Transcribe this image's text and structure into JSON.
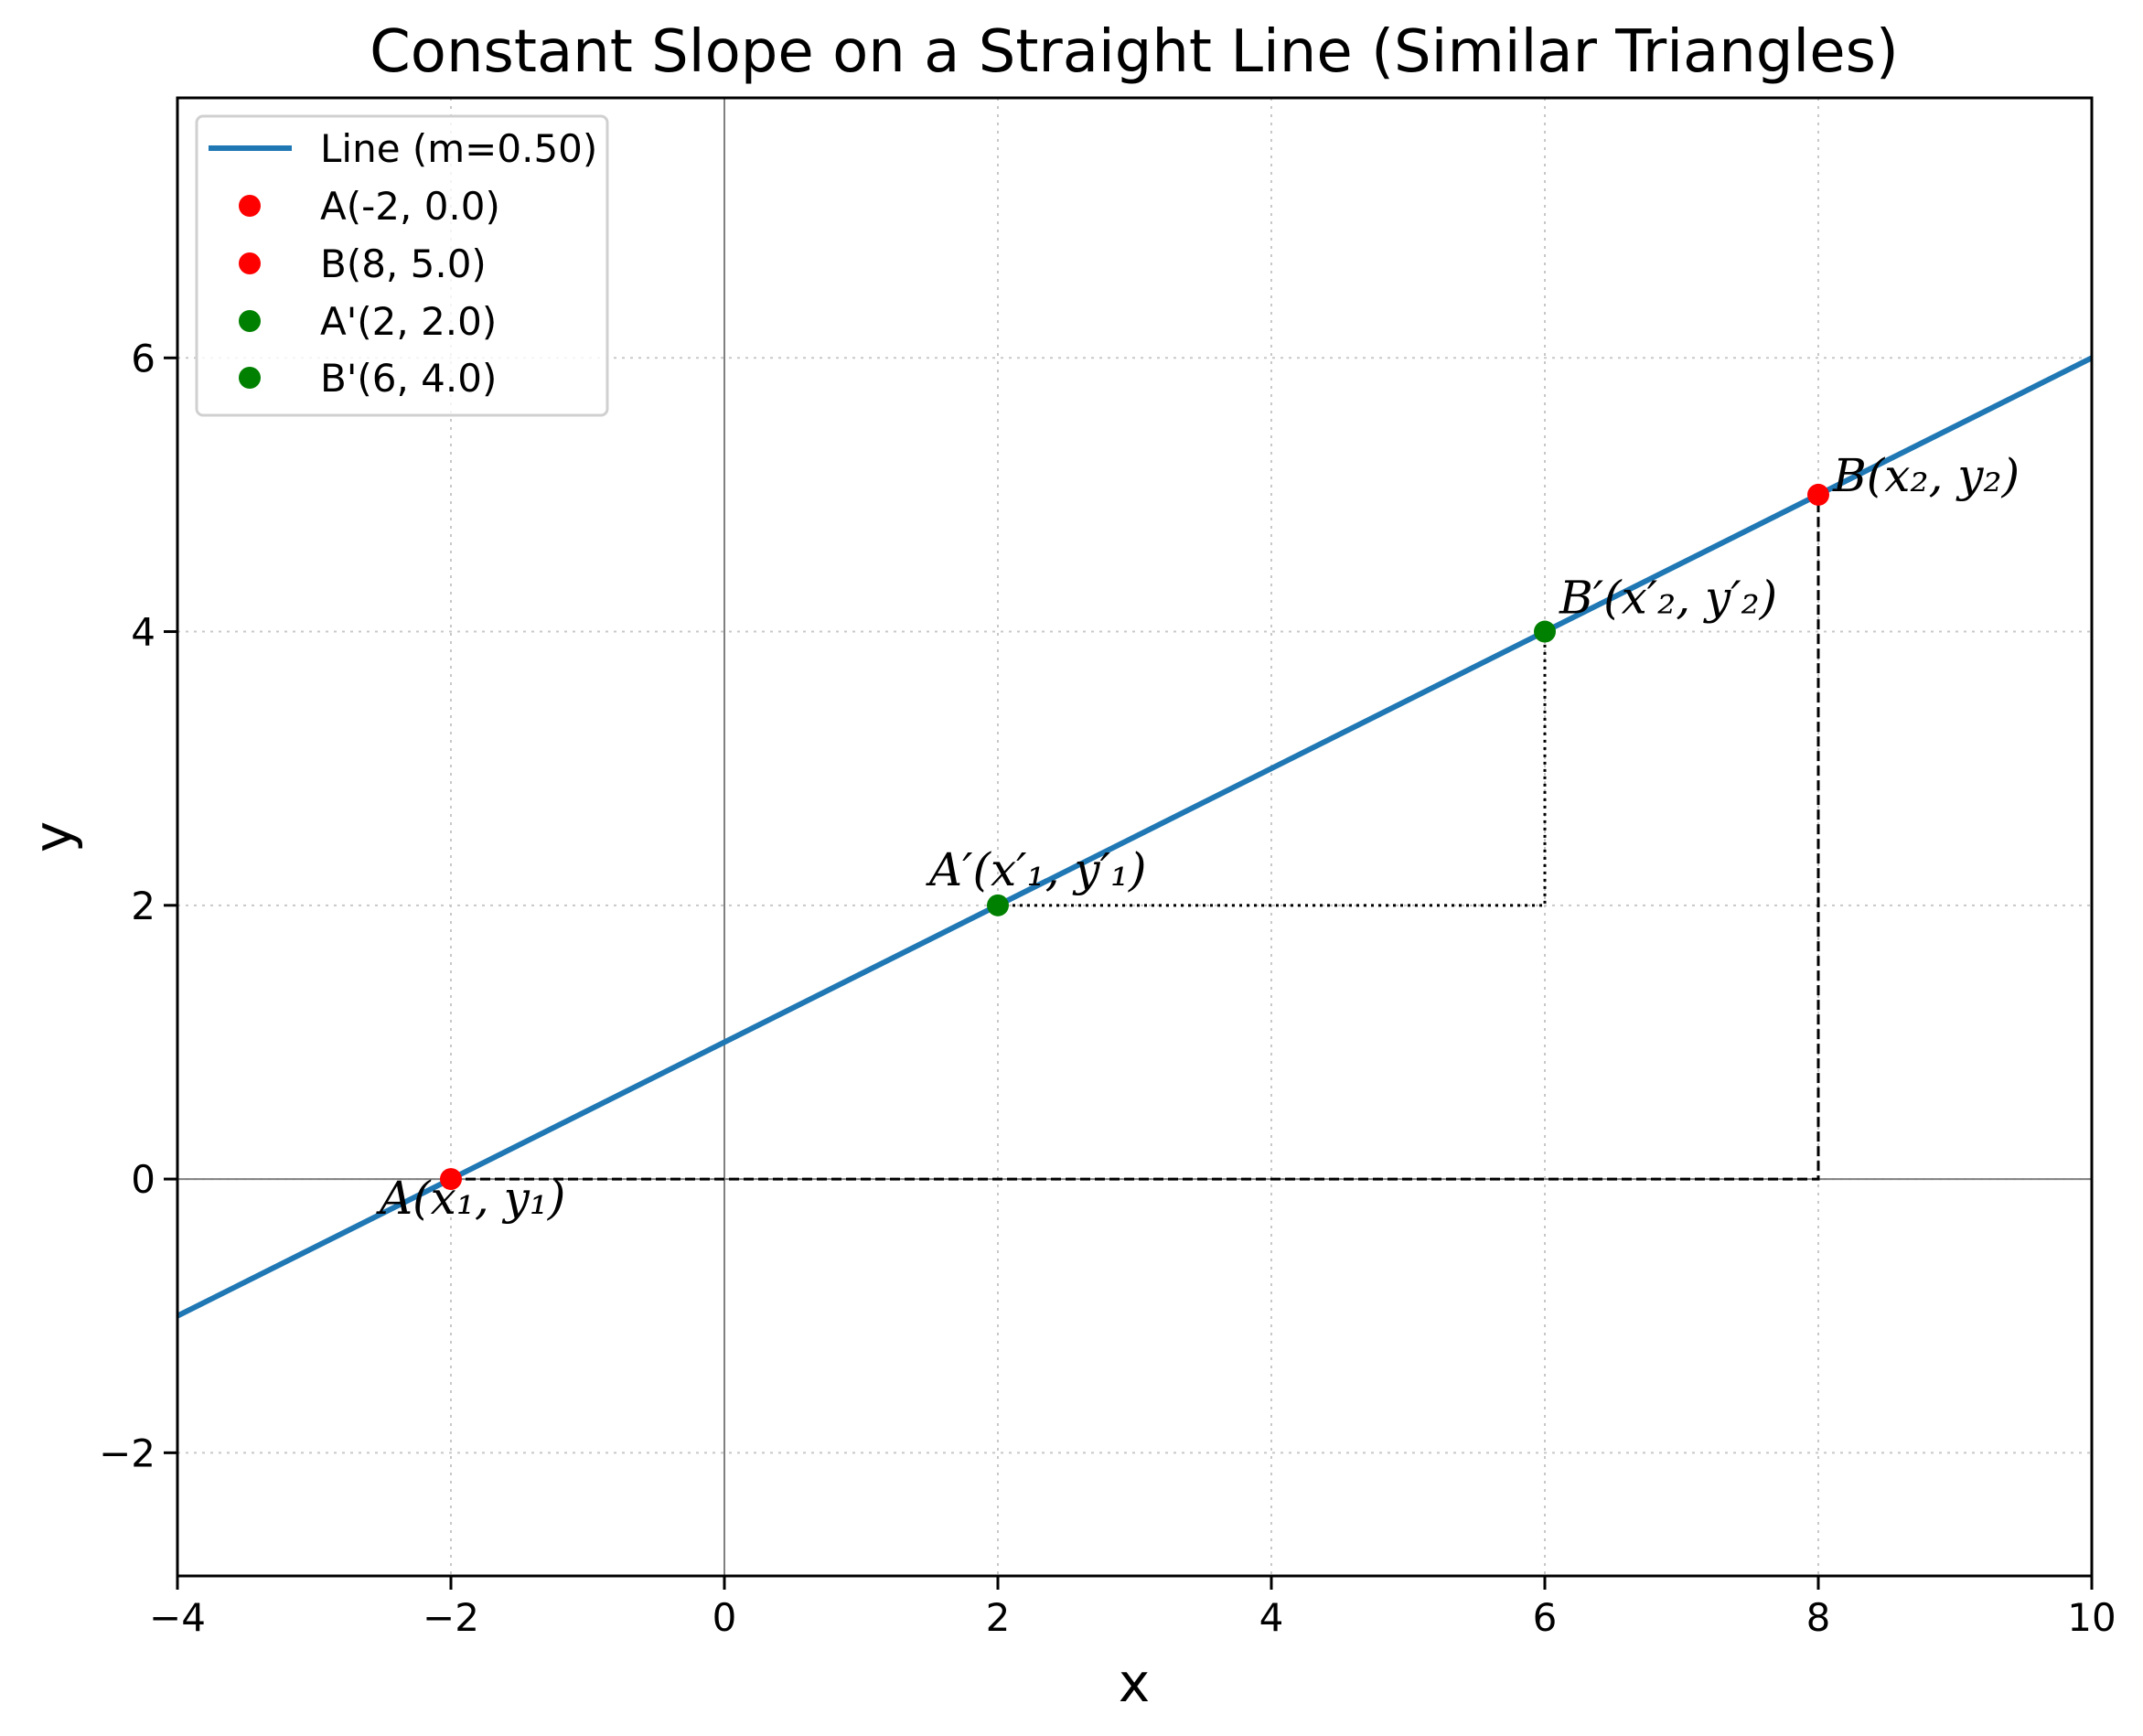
{
  "chart_data": {
    "type": "line",
    "title": "Constant Slope on a Straight Line (Similar Triangles)",
    "xlabel": "x",
    "ylabel": "y",
    "xlim": [
      -4,
      10
    ],
    "ylim": [
      -2.9,
      7.9
    ],
    "xticks": [
      -4,
      -2,
      0,
      2,
      4,
      6,
      8,
      10
    ],
    "xtick_labels": [
      "−4",
      "−2",
      "0",
      "2",
      "4",
      "6",
      "8",
      "10"
    ],
    "yticks": [
      -2,
      0,
      2,
      4,
      6
    ],
    "ytick_labels": [
      "−2",
      "0",
      "2",
      "4",
      "6"
    ],
    "grid": true,
    "legend_placement": "top-left",
    "line": {
      "name": "Line (m=0.50)",
      "slope": 0.5,
      "intercept": 1,
      "x": [
        -4,
        10
      ],
      "y": [
        -1,
        6
      ],
      "color": "#1f77b4"
    },
    "points": [
      {
        "name": "A(-2, 0.0)",
        "x": -2,
        "y": 0.0,
        "color": "#ff0000",
        "annotation": "A(x₁, y₁)"
      },
      {
        "name": "B(8, 5.0)",
        "x": 8,
        "y": 5.0,
        "color": "#ff0000",
        "annotation": "B(x₂, y₂)"
      },
      {
        "name": "A'(2, 2.0)",
        "x": 2,
        "y": 2.0,
        "color": "#008000",
        "annotation": "A′(x′₁, y′₁)"
      },
      {
        "name": "B'(6, 4.0)",
        "x": 6,
        "y": 4.0,
        "color": "#008000",
        "annotation": "B′(x′₂, y′₂)"
      }
    ],
    "guides": [
      {
        "name": "large-triangle",
        "style": "dashed",
        "x": [
          -2,
          8,
          8
        ],
        "y": [
          0,
          0,
          5
        ]
      },
      {
        "name": "small-triangle",
        "style": "dotted",
        "x": [
          2,
          6,
          6
        ],
        "y": [
          2,
          2,
          4
        ]
      }
    ]
  }
}
